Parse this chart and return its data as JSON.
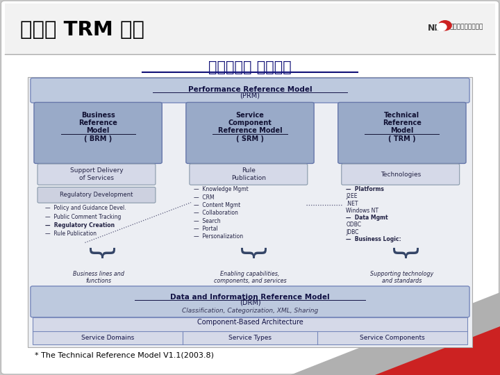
{
  "title": "범정부 TRM 소개",
  "subtitle": "참조모델간 연관관계",
  "footnote": "* The Technical Reference Model V1.1(2003.8)",
  "prm_label1": "Performance Reference Model",
  "prm_label2": "(PRM)",
  "drm_label1": "Data and Information Reference Model",
  "drm_label2": "(DRM)",
  "drm_label3": "Classification, Categorization, XML, Sharing",
  "cba_label": "Component-Based Architecture",
  "cba_cols": [
    "Service Domains",
    "Service Types",
    "Service Components"
  ],
  "col_names": [
    [
      "Business",
      "Reference",
      "Model",
      "( BRM )"
    ],
    [
      "Service",
      "Component",
      "Reference Model",
      "( SRM )"
    ],
    [
      "Technical",
      "Reference",
      "Model",
      "( TRM )"
    ]
  ],
  "sub_boxes": [
    "Support Delivery\nof Services",
    "Rule\nPublication",
    "Technologies"
  ],
  "brm_items": [
    "Policy and Guidance Devel.",
    "Public Comment Tracking",
    "Regulatory Creation",
    "Rule Publication"
  ],
  "srm_items": [
    "Knowledge Mgmt",
    "CRM",
    "Content Mgmt",
    "Collaboration",
    "Search",
    "Portal",
    "Personalization"
  ],
  "trm_items": [
    "Platforms",
    "  J2EE",
    "  .NET",
    "  Windows NT",
    "Data Mgmt",
    "  ODBC",
    "  JDBC",
    "Business Logic:"
  ],
  "brace_labels": [
    "Business lines and\nfunctions",
    "Enabling capabilities,\ncomponents, and services",
    "Supporting technology\nand standards"
  ]
}
